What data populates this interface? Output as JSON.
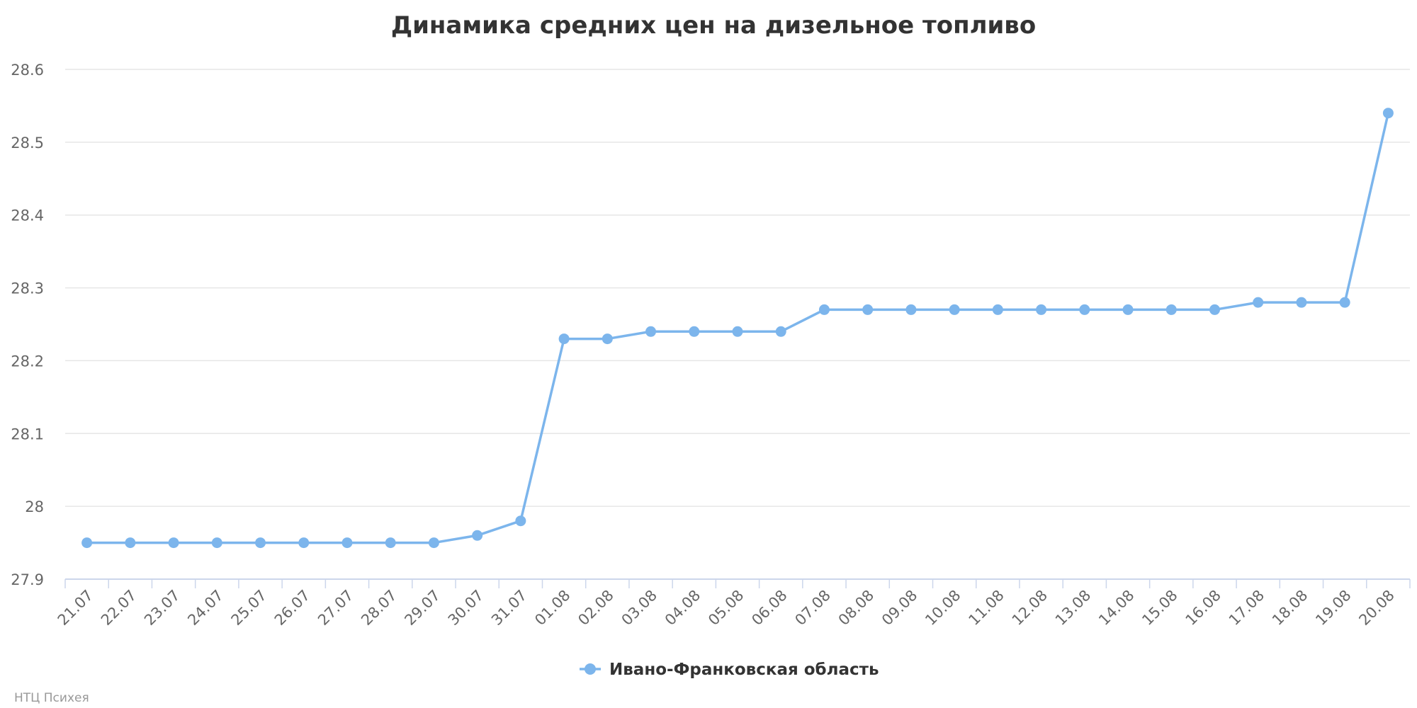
{
  "chart_data": {
    "type": "line",
    "title": "Динамика средних цен на дизельное топливо",
    "xlabel": "",
    "ylabel": "",
    "categories": [
      "21.07",
      "22.07",
      "23.07",
      "24.07",
      "25.07",
      "26.07",
      "27.07",
      "28.07",
      "29.07",
      "30.07",
      "31.07",
      "01.08",
      "02.08",
      "03.08",
      "04.08",
      "05.08",
      "06.08",
      "07.08",
      "08.08",
      "09.08",
      "10.08",
      "11.08",
      "12.08",
      "13.08",
      "14.08",
      "15.08",
      "16.08",
      "17.08",
      "18.08",
      "19.08",
      "20.08"
    ],
    "series": [
      {
        "name": "Ивано-Франковская область",
        "color": "#7cb5ec",
        "values": [
          27.95,
          27.95,
          27.95,
          27.95,
          27.95,
          27.95,
          27.95,
          27.95,
          27.95,
          27.96,
          27.98,
          28.23,
          28.23,
          28.24,
          28.24,
          28.24,
          28.24,
          28.27,
          28.27,
          28.27,
          28.27,
          28.27,
          28.27,
          28.27,
          28.27,
          28.27,
          28.27,
          28.28,
          28.28,
          28.28,
          28.54
        ]
      }
    ],
    "ylim": [
      27.9,
      28.6
    ],
    "yticks": [
      27.9,
      28,
      28.1,
      28.2,
      28.3,
      28.4,
      28.5,
      28.6
    ],
    "ytick_labels": [
      "27.9",
      "28",
      "28.1",
      "28.2",
      "28.3",
      "28.4",
      "28.5",
      "28.6"
    ],
    "grid": true,
    "legend_position": "bottom-center"
  },
  "credit": "НТЦ Психея"
}
